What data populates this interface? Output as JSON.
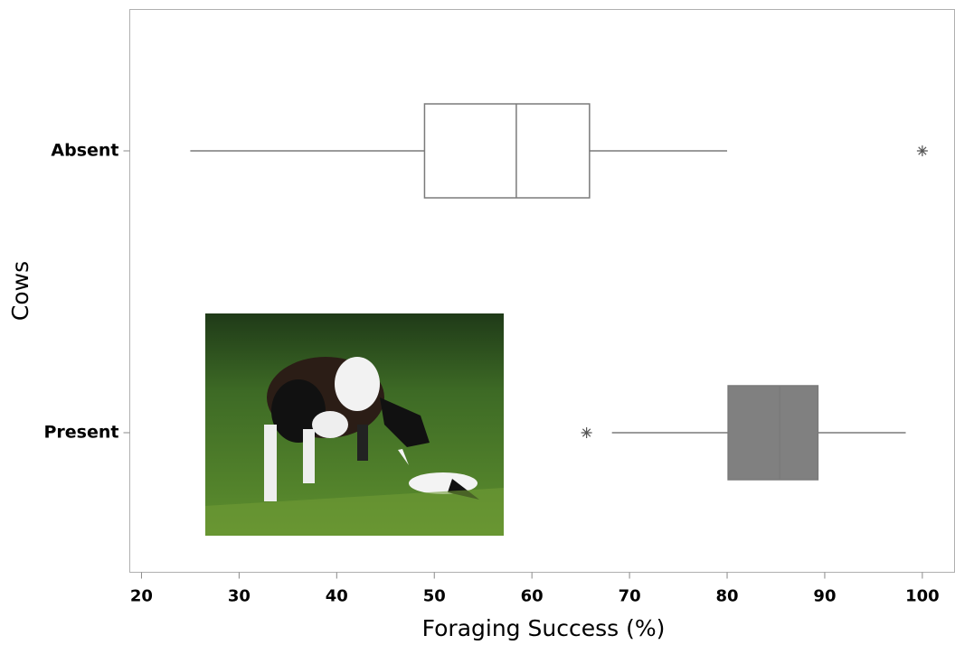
{
  "chart_data": {
    "type": "boxplot",
    "orientation": "horizontal",
    "x_label": "Foraging Success (%)",
    "y_label": "Cows",
    "categories": [
      "Absent",
      "Present"
    ],
    "boxes": [
      {
        "min": 25.0,
        "q1": 49.0,
        "median": 58.4,
        "q3": 65.9,
        "max": 80.0,
        "outliers": [
          100
        ],
        "color": "#ffffff"
      },
      {
        "min": 68.2,
        "q1": 80.1,
        "median": 85.4,
        "q3": 89.3,
        "max": 98.3,
        "outliers": [
          65.6
        ],
        "color": "#808080"
      }
    ],
    "xlim": [
      18.8,
      103.3
    ],
    "xticks": [
      20,
      30,
      40,
      50,
      60,
      70,
      80,
      90,
      100
    ]
  }
}
